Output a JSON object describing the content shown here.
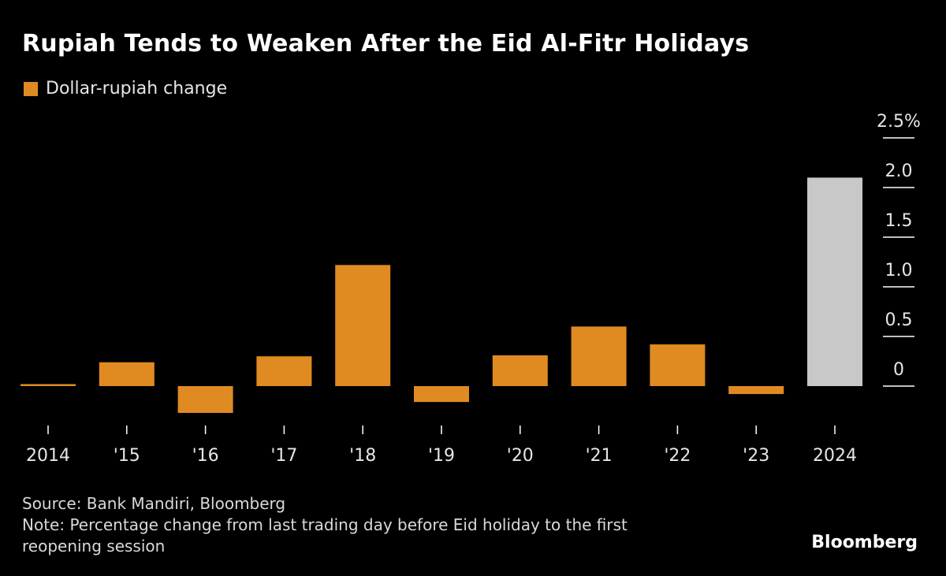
{
  "title": "Rupiah Tends to Weaken After the Eid Al-Fitr Holidays",
  "legend": {
    "label": "Dollar-rupiah change",
    "color": "#E08A22"
  },
  "source": "Source: Bank Mandiri, Bloomberg",
  "note_line1": "Note: Percentage change from last trading day before Eid holiday to the first",
  "note_line2": "reopening session",
  "brand": "Bloomberg",
  "colors": {
    "background": "#000000",
    "bar": "#E08A22",
    "highlight": "#C8C8C8"
  },
  "chart_data": {
    "type": "bar",
    "categories": [
      "2014",
      "'15",
      "'16",
      "'17",
      "'18",
      "'19",
      "'20",
      "'21",
      "'22",
      "'23",
      "2024"
    ],
    "values": [
      0.02,
      0.24,
      -0.27,
      0.3,
      1.22,
      -0.16,
      0.31,
      0.6,
      0.42,
      -0.08,
      2.1
    ],
    "highlight_index": 10,
    "ylim": [
      -0.4,
      2.5
    ],
    "yticks": [
      0,
      0.5,
      1.0,
      1.5,
      2.0,
      2.5
    ],
    "ytick_labels": [
      "0",
      "0.5",
      "1.0",
      "1.5",
      "2.0",
      "2.5%"
    ],
    "y_axis_position": "right",
    "grid": false
  }
}
